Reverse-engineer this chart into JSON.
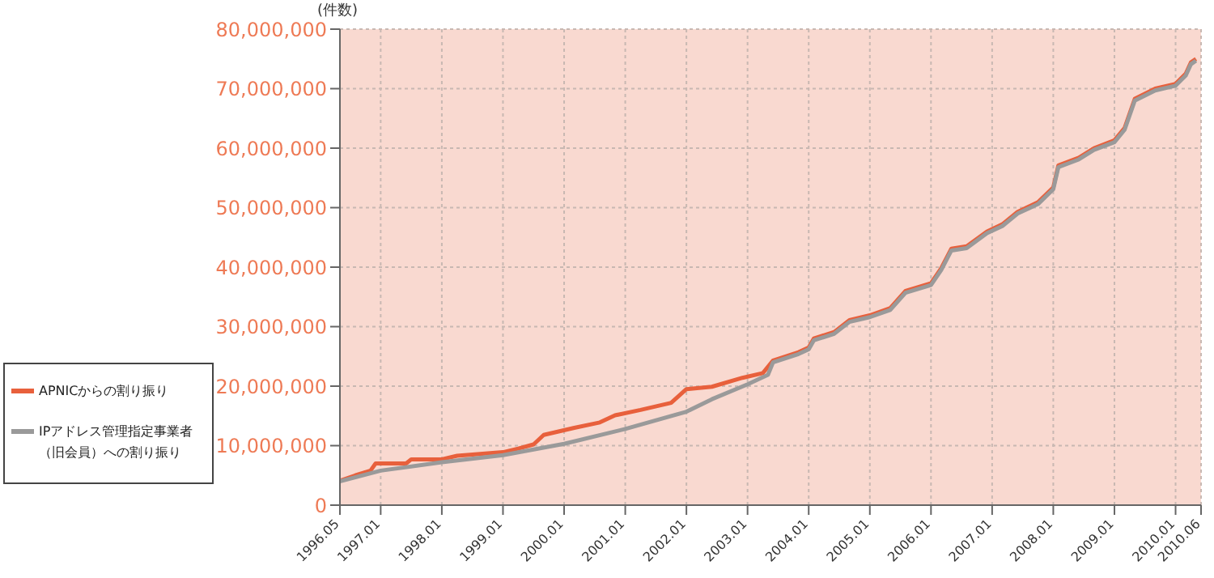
{
  "chart_data": {
    "type": "line",
    "ylabel": "(件数)",
    "xlim": [
      "1996-05",
      "2010-06"
    ],
    "xticks": [
      {
        "value": "1996-05",
        "label": "1996.05"
      },
      {
        "value": "1997-01",
        "label": "1997.01"
      },
      {
        "value": "1998-01",
        "label": "1998.01"
      },
      {
        "value": "1999-01",
        "label": "1999.01"
      },
      {
        "value": "2000-01",
        "label": "2000.01"
      },
      {
        "value": "2001-01",
        "label": "2001.01"
      },
      {
        "value": "2002-01",
        "label": "2002.01"
      },
      {
        "value": "2003-01",
        "label": "2003.01"
      },
      {
        "value": "2004-01",
        "label": "2004.01"
      },
      {
        "value": "2005-01",
        "label": "2005.01"
      },
      {
        "value": "2006-01",
        "label": "2006.01"
      },
      {
        "value": "2007-01",
        "label": "2007.01"
      },
      {
        "value": "2008-01",
        "label": "2008.01"
      },
      {
        "value": "2009-01",
        "label": "2009.01"
      },
      {
        "value": "2010-01",
        "label": "2010.01"
      },
      {
        "value": "2010-06",
        "label": "2010.06"
      }
    ],
    "ylim": [
      0,
      80000000
    ],
    "yticks": [
      {
        "value": 0,
        "label": "0"
      },
      {
        "value": 10000000,
        "label": "10,000,000"
      },
      {
        "value": 20000000,
        "label": "20,000,000"
      },
      {
        "value": 30000000,
        "label": "30,000,000"
      },
      {
        "value": 40000000,
        "label": "40,000,000"
      },
      {
        "value": 50000000,
        "label": "50,000,000"
      },
      {
        "value": 60000000,
        "label": "60,000,000"
      },
      {
        "value": 70000000,
        "label": "70,000,000"
      },
      {
        "value": 80000000,
        "label": "80,000,000"
      }
    ],
    "grid": true,
    "legend": "left",
    "marker": "none",
    "line_style": "solid",
    "series": [
      {
        "name": "APNICからの割り振り",
        "color": "#e8603c",
        "x": [
          "1996-05",
          "1996-08",
          "1996-11",
          "1996-12",
          "1997-06",
          "1997-07",
          "1998-01",
          "1998-04",
          "1999-01",
          "1999-04",
          "1999-07",
          "1999-09",
          "2000-03",
          "2000-08",
          "2000-11",
          "2001-04",
          "2001-10",
          "2002-01",
          "2002-06",
          "2002-12",
          "2003-04",
          "2003-06",
          "2003-11",
          "2004-01",
          "2004-02",
          "2004-06",
          "2004-09",
          "2005-01",
          "2005-05",
          "2005-08",
          "2006-01",
          "2006-03",
          "2006-05",
          "2006-08",
          "2006-12",
          "2007-03",
          "2007-06",
          "2007-10",
          "2008-01",
          "2008-02",
          "2008-06",
          "2008-09",
          "2009-01",
          "2009-03",
          "2009-05",
          "2009-09",
          "2010-01",
          "2010-03",
          "2010-04",
          "2010-05"
        ],
        "values": [
          4100000,
          5000000,
          5800000,
          7000000,
          7000000,
          7700000,
          7700000,
          8300000,
          8900000,
          9500000,
          10200000,
          11800000,
          13000000,
          13900000,
          15100000,
          16000000,
          17200000,
          19500000,
          19900000,
          21400000,
          22200000,
          24300000,
          25700000,
          26500000,
          28000000,
          29100000,
          31100000,
          31900000,
          33100000,
          36000000,
          37300000,
          39800000,
          43100000,
          43500000,
          46000000,
          47200000,
          49300000,
          50900000,
          53400000,
          57100000,
          58400000,
          60000000,
          61300000,
          63400000,
          68300000,
          70000000,
          70800000,
          72500000,
          74400000,
          75000000
        ]
      },
      {
        "name": "IPアドレス管理指定事業者（旧会員）への割り振り",
        "color": "#9a9a9a",
        "x": [
          "1996-05",
          "1997-01",
          "1998-01",
          "1999-01",
          "2000-01",
          "2001-01",
          "2002-01",
          "2002-06",
          "2003-01",
          "2003-05",
          "2003-06",
          "2003-11",
          "2004-01",
          "2004-02",
          "2004-06",
          "2004-09",
          "2005-01",
          "2005-05",
          "2005-08",
          "2006-01",
          "2006-03",
          "2006-05",
          "2006-08",
          "2006-12",
          "2007-03",
          "2007-06",
          "2007-10",
          "2008-01",
          "2008-02",
          "2008-06",
          "2008-09",
          "2009-01",
          "2009-03",
          "2009-05",
          "2009-09",
          "2010-01",
          "2010-03",
          "2010-04",
          "2010-05"
        ],
        "values": [
          4000000,
          5800000,
          7200000,
          8400000,
          10300000,
          12800000,
          15700000,
          17800000,
          20300000,
          21900000,
          24000000,
          25400000,
          26200000,
          27700000,
          28800000,
          30800000,
          31600000,
          32800000,
          35700000,
          37000000,
          39500000,
          42800000,
          43200000,
          45700000,
          46900000,
          49000000,
          50600000,
          53100000,
          56800000,
          58100000,
          59700000,
          61000000,
          63100000,
          68000000,
          69700000,
          70500000,
          72200000,
          74100000,
          74700000
        ]
      }
    ]
  }
}
